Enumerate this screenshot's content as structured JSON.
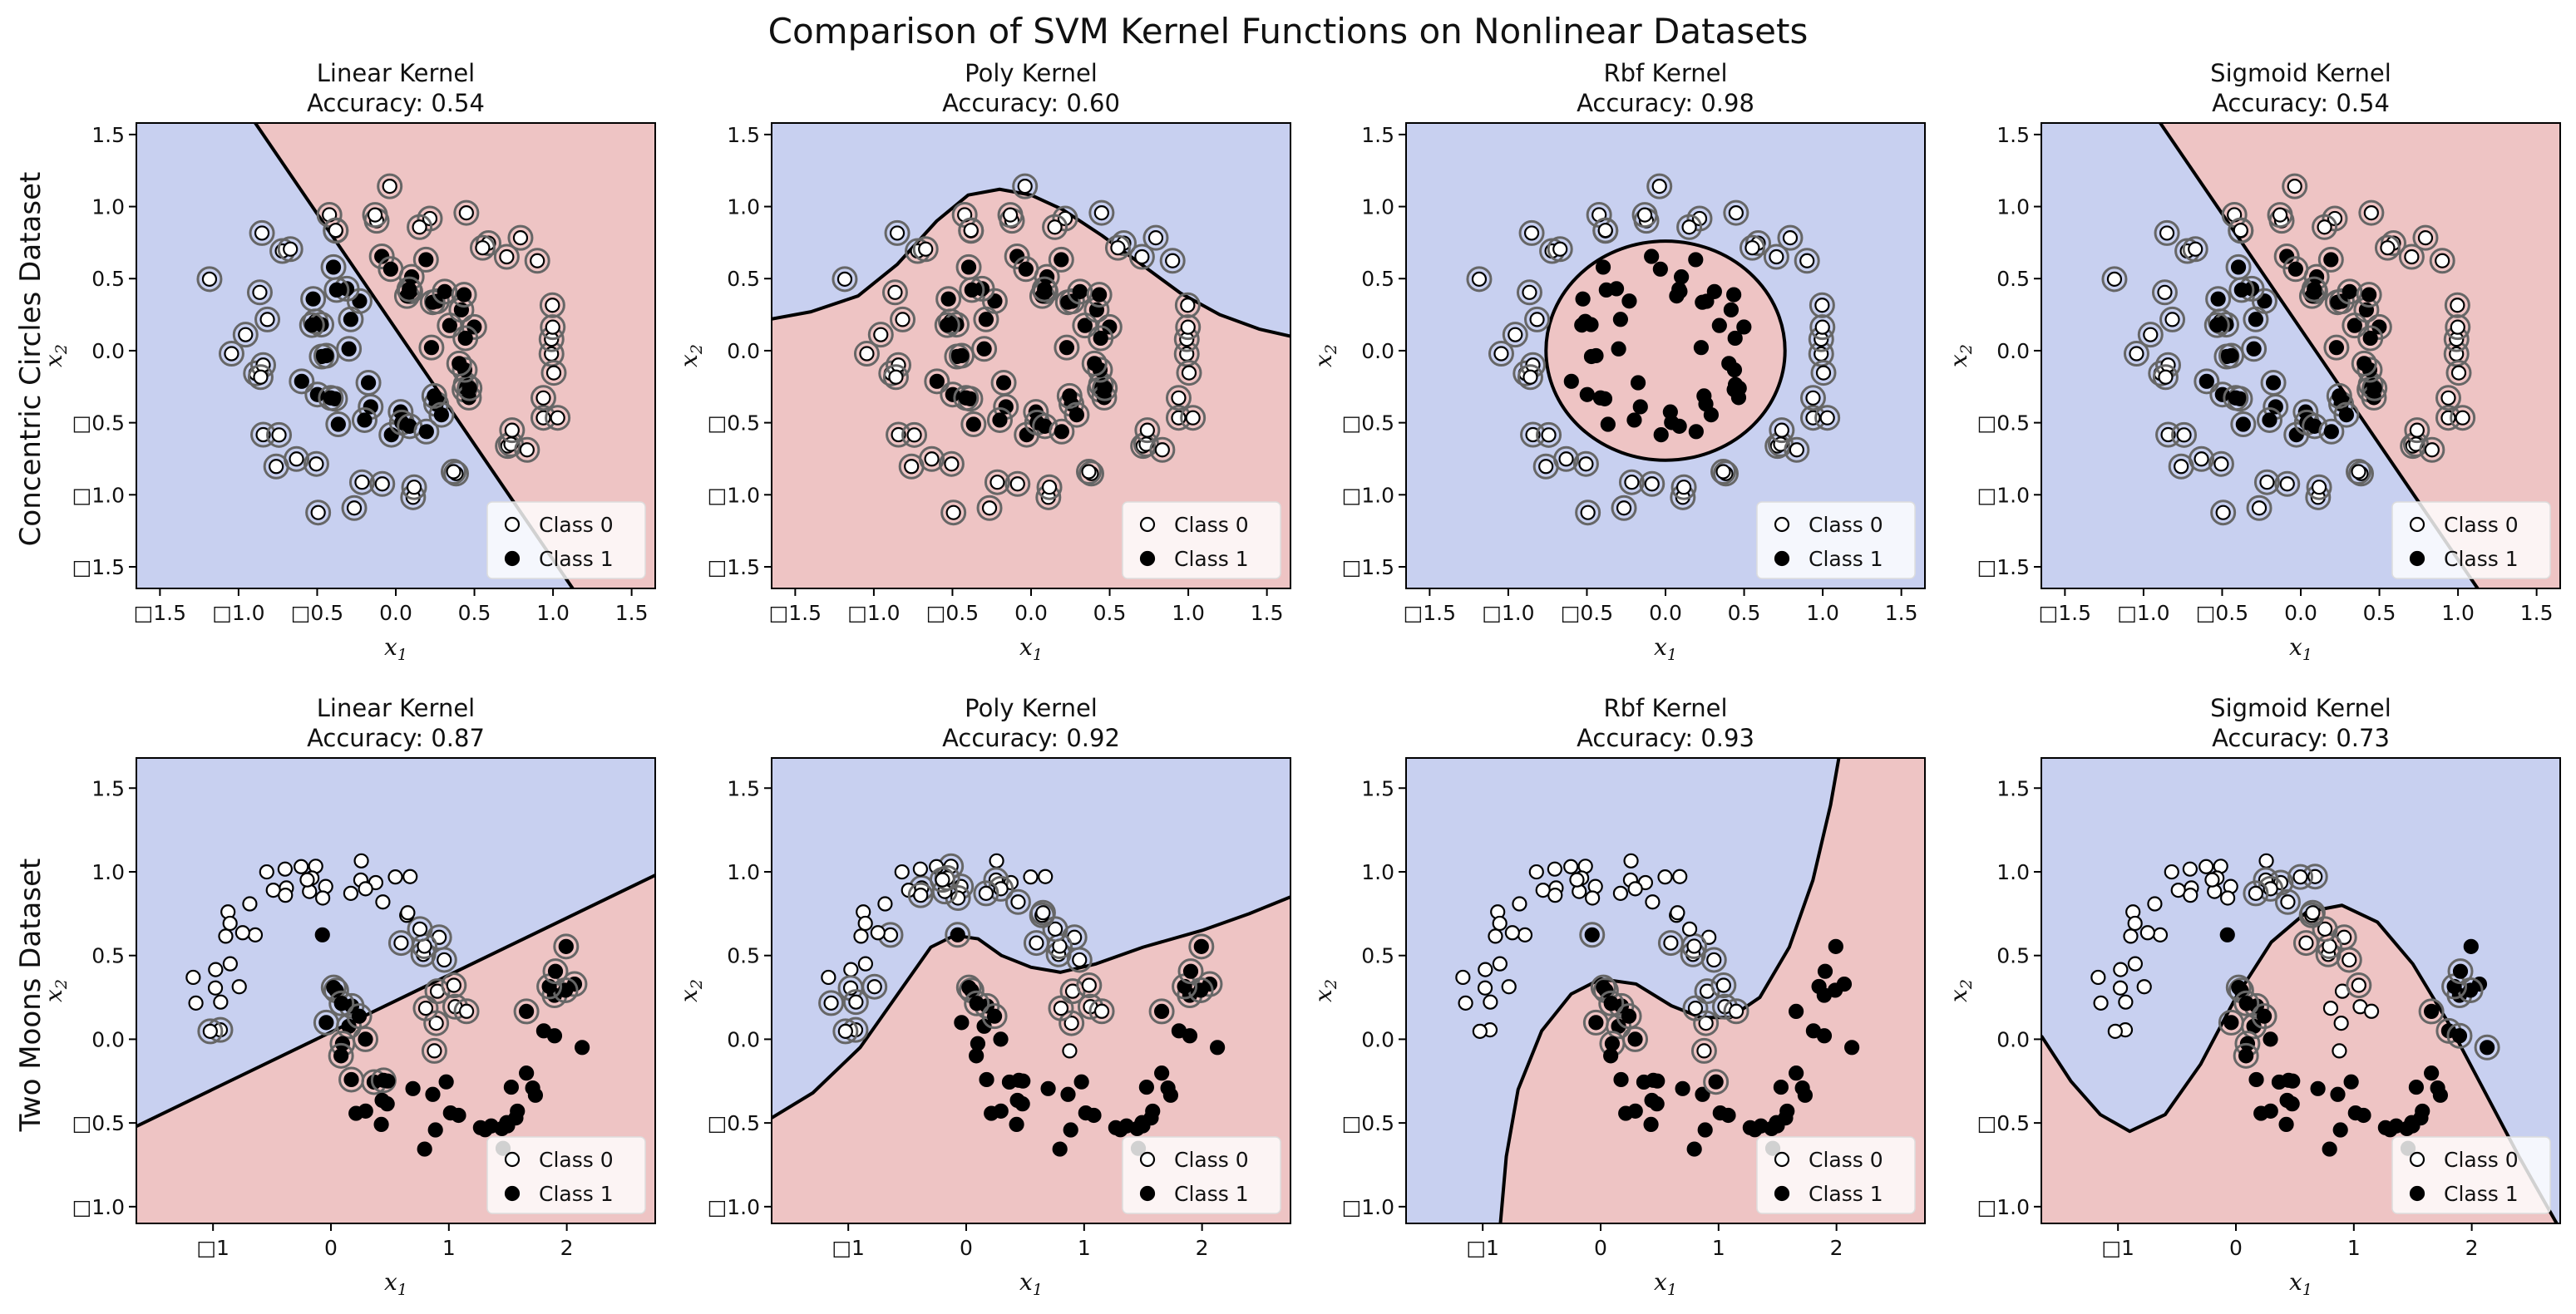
{
  "suptitle": "Comparison of SVM Kernel Functions on Nonlinear Datasets",
  "colors": {
    "class0_region": "#c8d0f0",
    "class1_region": "#eec4c4",
    "boundary": "#000000",
    "class0_marker": "#ffffff",
    "class1_marker": "#000000",
    "sv_ring": "#666666"
  },
  "legend": {
    "placement": "lower right",
    "entries": [
      "Class 0",
      "Class 1"
    ]
  },
  "chart_data": [
    {
      "type": "scatter",
      "dataset": "circles",
      "row_label": "Concentric Circles Dataset",
      "title": "Linear Kernel",
      "subtitle": "Accuracy: 0.54",
      "xlabel": "x",
      "xlabel_sub": "1",
      "ylabel": "x",
      "ylabel_sub": "2",
      "xlim": [
        -1.65,
        1.65
      ],
      "ylim": [
        -1.65,
        1.58
      ],
      "xticks": [
        -1.5,
        -1.0,
        -0.5,
        0.0,
        0.5,
        1.0,
        1.5
      ],
      "xtick_labels": [
        "□1.5",
        "□1.0",
        "□0.5",
        "0.0",
        "0.5",
        "1.0",
        "1.5"
      ],
      "yticks": [
        -1.5,
        -1.0,
        -0.5,
        0.0,
        0.5,
        1.0,
        1.5
      ],
      "ytick_labels": [
        "□1.5",
        "□1.0",
        "□0.5",
        "0.0",
        "0.5",
        "1.0",
        "1.5"
      ],
      "accuracy": 0.54,
      "boundary": {
        "kind": "line",
        "w1": 1.6,
        "w2": 1.0,
        "b": 0.15
      },
      "support_vectors": "all"
    },
    {
      "type": "scatter",
      "dataset": "circles",
      "title": "Poly Kernel",
      "subtitle": "Accuracy: 0.60",
      "xlabel": "x",
      "xlabel_sub": "1",
      "ylabel": "x",
      "ylabel_sub": "2",
      "xlim": [
        -1.65,
        1.65
      ],
      "ylim": [
        -1.65,
        1.58
      ],
      "xticks": [
        -1.5,
        -1.0,
        -0.5,
        0.0,
        0.5,
        1.0,
        1.5
      ],
      "xtick_labels": [
        "□1.5",
        "□1.0",
        "□0.5",
        "0.0",
        "0.5",
        "1.0",
        "1.5"
      ],
      "yticks": [
        -1.5,
        -1.0,
        -0.5,
        0.0,
        0.5,
        1.0,
        1.5
      ],
      "ytick_labels": [
        "□1.5",
        "□1.0",
        "□0.5",
        "0.0",
        "0.5",
        "1.0",
        "1.5"
      ],
      "accuracy": 0.6,
      "boundary": {
        "kind": "curve",
        "points": [
          [
            -1.65,
            0.22
          ],
          [
            -1.4,
            0.27
          ],
          [
            -1.1,
            0.38
          ],
          [
            -0.85,
            0.6
          ],
          [
            -0.6,
            0.9
          ],
          [
            -0.4,
            1.08
          ],
          [
            -0.2,
            1.12
          ],
          [
            0.0,
            1.08
          ],
          [
            0.2,
            0.98
          ],
          [
            0.45,
            0.8
          ],
          [
            0.7,
            0.6
          ],
          [
            0.95,
            0.4
          ],
          [
            1.2,
            0.25
          ],
          [
            1.45,
            0.15
          ],
          [
            1.65,
            0.1
          ]
        ]
      },
      "support_vectors": "all"
    },
    {
      "type": "scatter",
      "dataset": "circles",
      "title": "Rbf Kernel",
      "subtitle": "Accuracy: 0.98",
      "xlabel": "x",
      "xlabel_sub": "1",
      "ylabel": "x",
      "ylabel_sub": "2",
      "xlim": [
        -1.65,
        1.65
      ],
      "ylim": [
        -1.65,
        1.58
      ],
      "xticks": [
        -1.5,
        -1.0,
        -0.5,
        0.0,
        0.5,
        1.0,
        1.5
      ],
      "xtick_labels": [
        "□1.5",
        "□1.0",
        "□0.5",
        "0.0",
        "0.5",
        "1.0",
        "1.5"
      ],
      "yticks": [
        -1.5,
        -1.0,
        -0.5,
        0.0,
        0.5,
        1.0,
        1.5
      ],
      "ytick_labels": [
        "□1.5",
        "□1.0",
        "□0.5",
        "0.0",
        "0.5",
        "1.0",
        "1.5"
      ],
      "accuracy": 0.98,
      "boundary": {
        "kind": "ellipse",
        "cx": 0.0,
        "cy": 0.0,
        "rx": 0.76,
        "ry": 0.76
      },
      "support_vectors": "outer"
    },
    {
      "type": "scatter",
      "dataset": "circles",
      "title": "Sigmoid Kernel",
      "subtitle": "Accuracy: 0.54",
      "xlabel": "x",
      "xlabel_sub": "1",
      "ylabel": "x",
      "ylabel_sub": "2",
      "xlim": [
        -1.65,
        1.65
      ],
      "ylim": [
        -1.65,
        1.58
      ],
      "xticks": [
        -1.5,
        -1.0,
        -0.5,
        0.0,
        0.5,
        1.0,
        1.5
      ],
      "xtick_labels": [
        "□1.5",
        "□1.0",
        "□0.5",
        "0.0",
        "0.5",
        "1.0",
        "1.5"
      ],
      "yticks": [
        -1.5,
        -1.0,
        -0.5,
        0.0,
        0.5,
        1.0,
        1.5
      ],
      "ytick_labels": [
        "□1.5",
        "□1.0",
        "□0.5",
        "0.0",
        "0.5",
        "1.0",
        "1.5"
      ],
      "accuracy": 0.54,
      "boundary": {
        "kind": "line",
        "w1": 1.6,
        "w2": 1.0,
        "b": 0.15
      },
      "support_vectors": "all"
    },
    {
      "type": "scatter",
      "dataset": "moons",
      "row_label": "Two Moons Dataset",
      "title": "Linear Kernel",
      "subtitle": "Accuracy: 0.87",
      "xlabel": "x",
      "xlabel_sub": "1",
      "ylabel": "x",
      "ylabel_sub": "2",
      "xlim": [
        -1.65,
        2.75
      ],
      "ylim": [
        -1.1,
        1.68
      ],
      "xticks": [
        -1,
        0,
        1,
        2
      ],
      "xtick_labels": [
        "□1",
        "0",
        "1",
        "2"
      ],
      "yticks": [
        -1.0,
        -0.5,
        0.0,
        0.5,
        1.0,
        1.5
      ],
      "ytick_labels": [
        "□1.0",
        "□0.5",
        "0.0",
        "0.5",
        "1.0",
        "1.5"
      ],
      "accuracy": 0.87,
      "boundary": {
        "kind": "curve",
        "points": [
          [
            -1.65,
            -0.52
          ],
          [
            2.75,
            0.98
          ]
        ]
      },
      "support_vectors": "near_line"
    },
    {
      "type": "scatter",
      "dataset": "moons",
      "title": "Poly Kernel",
      "subtitle": "Accuracy: 0.92",
      "xlabel": "x",
      "xlabel_sub": "1",
      "ylabel": "x",
      "ylabel_sub": "2",
      "xlim": [
        -1.65,
        2.75
      ],
      "ylim": [
        -1.1,
        1.68
      ],
      "xticks": [
        -1,
        0,
        1,
        2
      ],
      "xtick_labels": [
        "□1",
        "0",
        "1",
        "2"
      ],
      "yticks": [
        -1.0,
        -0.5,
        0.0,
        0.5,
        1.0,
        1.5
      ],
      "ytick_labels": [
        "□1.0",
        "□0.5",
        "0.0",
        "0.5",
        "1.0",
        "1.5"
      ],
      "accuracy": 0.92,
      "boundary": {
        "kind": "curve",
        "points": [
          [
            -1.65,
            -0.47
          ],
          [
            -1.3,
            -0.32
          ],
          [
            -0.9,
            -0.05
          ],
          [
            -0.55,
            0.3
          ],
          [
            -0.3,
            0.55
          ],
          [
            -0.1,
            0.62
          ],
          [
            0.1,
            0.6
          ],
          [
            0.3,
            0.5
          ],
          [
            0.55,
            0.43
          ],
          [
            0.8,
            0.4
          ],
          [
            1.1,
            0.45
          ],
          [
            1.5,
            0.55
          ],
          [
            2.0,
            0.65
          ],
          [
            2.4,
            0.75
          ],
          [
            2.75,
            0.85
          ]
        ]
      },
      "support_vectors": "near_line"
    },
    {
      "type": "scatter",
      "dataset": "moons",
      "title": "Rbf Kernel",
      "subtitle": "Accuracy: 0.93",
      "xlabel": "x",
      "xlabel_sub": "1",
      "ylabel": "x",
      "ylabel_sub": "2",
      "xlim": [
        -1.65,
        2.75
      ],
      "ylim": [
        -1.1,
        1.68
      ],
      "xticks": [
        -1,
        0,
        1,
        2
      ],
      "xtick_labels": [
        "□1",
        "0",
        "1",
        "2"
      ],
      "yticks": [
        -1.0,
        -0.5,
        0.0,
        0.5,
        1.0,
        1.5
      ],
      "ytick_labels": [
        "□1.0",
        "□0.5",
        "0.0",
        "0.5",
        "1.0",
        "1.5"
      ],
      "accuracy": 0.93,
      "boundary": {
        "kind": "curve",
        "points": [
          [
            -0.85,
            -1.1
          ],
          [
            -0.8,
            -0.7
          ],
          [
            -0.7,
            -0.3
          ],
          [
            -0.5,
            0.05
          ],
          [
            -0.25,
            0.27
          ],
          [
            0.0,
            0.36
          ],
          [
            0.3,
            0.33
          ],
          [
            0.6,
            0.2
          ],
          [
            0.85,
            0.13
          ],
          [
            1.1,
            0.13
          ],
          [
            1.35,
            0.25
          ],
          [
            1.6,
            0.55
          ],
          [
            1.8,
            0.95
          ],
          [
            1.95,
            1.4
          ],
          [
            2.02,
            1.68
          ]
        ]
      },
      "support_vectors": "near_line"
    },
    {
      "type": "scatter",
      "dataset": "moons",
      "title": "Sigmoid Kernel",
      "subtitle": "Accuracy: 0.73",
      "xlabel": "x",
      "xlabel_sub": "1",
      "ylabel": "x",
      "ylabel_sub": "2",
      "xlim": [
        -1.65,
        2.75
      ],
      "ylim": [
        -1.1,
        1.68
      ],
      "xticks": [
        -1,
        0,
        1,
        2
      ],
      "xtick_labels": [
        "□1",
        "0",
        "1",
        "2"
      ],
      "yticks": [
        -1.0,
        -0.5,
        0.0,
        0.5,
        1.0,
        1.5
      ],
      "ytick_labels": [
        "□1.0",
        "□0.5",
        "0.0",
        "0.5",
        "1.0",
        "1.5"
      ],
      "accuracy": 0.73,
      "boundary": {
        "kind": "curve",
        "points": [
          [
            -1.65,
            0.02
          ],
          [
            -1.4,
            -0.25
          ],
          [
            -1.15,
            -0.45
          ],
          [
            -0.9,
            -0.55
          ],
          [
            -0.6,
            -0.45
          ],
          [
            -0.3,
            -0.15
          ],
          [
            0.0,
            0.25
          ],
          [
            0.3,
            0.58
          ],
          [
            0.6,
            0.76
          ],
          [
            0.9,
            0.8
          ],
          [
            1.2,
            0.7
          ],
          [
            1.5,
            0.45
          ],
          [
            1.8,
            0.1
          ],
          [
            2.1,
            -0.3
          ],
          [
            2.4,
            -0.7
          ],
          [
            2.72,
            -1.1
          ]
        ]
      },
      "support_vectors": "near_line"
    }
  ]
}
